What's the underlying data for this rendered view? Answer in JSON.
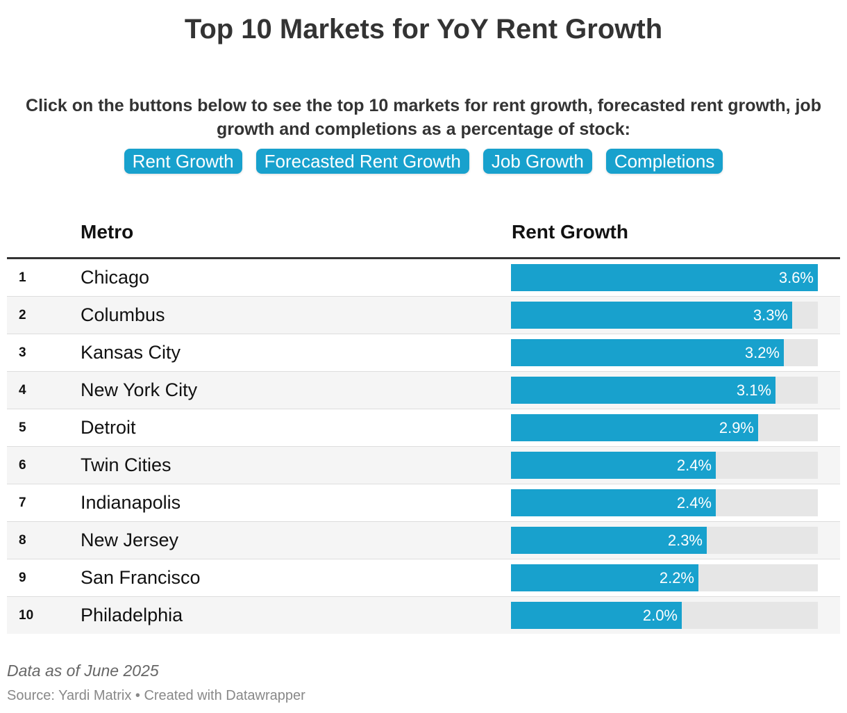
{
  "title": "Top 10 Markets for YoY Rent Growth",
  "intro": "Click on the buttons below to see the top 10 markets for rent growth, forecasted rent growth, job growth and completions as a percentage of stock:",
  "buttons": [
    "Rent Growth",
    "Forecasted Rent Growth",
    "Job Growth",
    "Completions"
  ],
  "colors": {
    "bar": "#18a1cd",
    "track": "#e6e6e6",
    "button": "#18a1cd"
  },
  "table": {
    "columns": [
      "Metro",
      "Rent Growth"
    ]
  },
  "chart_data": {
    "type": "table",
    "columns": [
      "",
      "Metro",
      "Rent Growth"
    ],
    "unit": "%",
    "max": 3.6,
    "rows": [
      {
        "rank": "1",
        "metro": "Chicago",
        "value": 3.6,
        "label": "3.6%"
      },
      {
        "rank": "2",
        "metro": "Columbus",
        "value": 3.3,
        "label": "3.3%"
      },
      {
        "rank": "3",
        "metro": "Kansas City",
        "value": 3.2,
        "label": "3.2%"
      },
      {
        "rank": "4",
        "metro": "New York City",
        "value": 3.1,
        "label": "3.1%"
      },
      {
        "rank": "5",
        "metro": "Detroit",
        "value": 2.9,
        "label": "2.9%"
      },
      {
        "rank": "6",
        "metro": "Twin Cities",
        "value": 2.4,
        "label": "2.4%"
      },
      {
        "rank": "7",
        "metro": "Indianapolis",
        "value": 2.4,
        "label": "2.4%"
      },
      {
        "rank": "8",
        "metro": "New Jersey",
        "value": 2.3,
        "label": "2.3%"
      },
      {
        "rank": "9",
        "metro": "San Francisco",
        "value": 2.2,
        "label": "2.2%"
      },
      {
        "rank": "10",
        "metro": "Philadelphia",
        "value": 2.0,
        "label": "2.0%"
      }
    ]
  },
  "footer": {
    "note": "Data as of June 2025",
    "source": "Source: Yardi Matrix • Created with Datawrapper"
  }
}
